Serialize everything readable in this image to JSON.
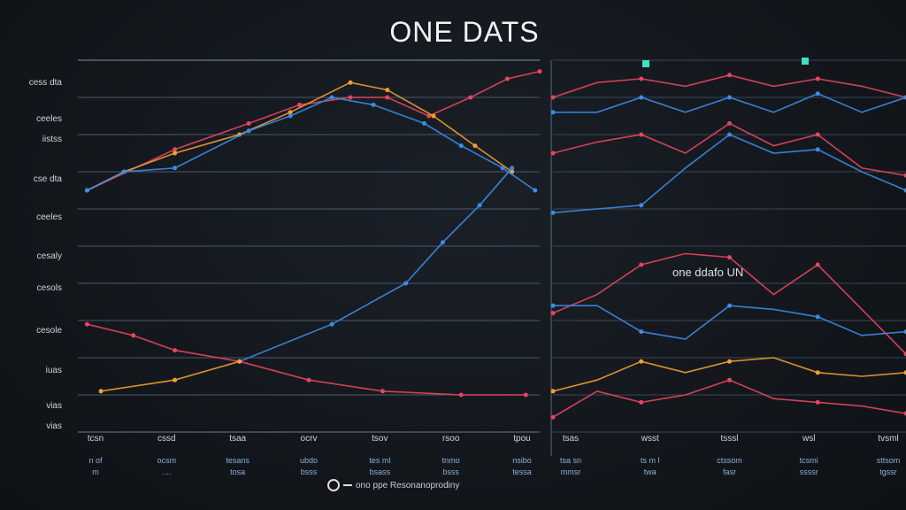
{
  "title": "ONE DATS",
  "inner_label": "one ddafo UN",
  "legend": "ono ppe Resonanoprodiny",
  "chart_data": [
    {
      "type": "line",
      "title": "ONE DATS",
      "xlim": [
        0,
        10
      ],
      "ylim": [
        0,
        100
      ],
      "grid": true,
      "ytick_labels": [
        "cess dta",
        "ceeles",
        "iistss",
        "cse dta",
        "ceeles",
        "cesaly",
        "cesols",
        "cesole",
        "iuas",
        "vias",
        "vias"
      ],
      "xtick_labels": [
        "tcsn",
        "cssd",
        "tsaa",
        "ocrv",
        "tsov",
        "rsoo",
        "tpou"
      ],
      "xsub_labels": [
        [
          "n of",
          "m"
        ],
        [
          "ocsm",
          "...."
        ],
        [
          "tesans",
          "tosa"
        ],
        [
          "ubdo",
          "bsss"
        ],
        [
          "tes ml",
          "bsass"
        ],
        [
          "tnmo",
          "bsss"
        ],
        [
          "nsibo",
          "tessa"
        ]
      ],
      "series": [
        {
          "name": "red-upper",
          "color": "#e8455e",
          "x": [
            0.2,
            2.1,
            3.7,
            4.8,
            5.9,
            6.7,
            7.6,
            8.5,
            9.3,
            10
          ],
          "y": [
            65,
            76,
            83,
            88,
            90,
            90,
            85,
            90,
            95,
            97
          ]
        },
        {
          "name": "orange-upper",
          "color": "#f0a030",
          "x": [
            0.2,
            1,
            2.1,
            3.5,
            4.6,
            5.9,
            6.7,
            7.7,
            8.6,
            9.4
          ],
          "y": [
            65,
            70,
            75,
            80,
            86,
            94,
            92,
            85,
            77,
            70
          ]
        },
        {
          "name": "blue-upper",
          "color": "#3a8ce8",
          "x": [
            0.2,
            1,
            2.1,
            3.7,
            4.6,
            5.5,
            6.4,
            7.5,
            8.3,
            9.2,
            9.9
          ],
          "y": [
            65,
            70,
            71,
            81,
            85,
            90,
            88,
            83,
            77,
            71,
            65
          ]
        },
        {
          "name": "blue-rising",
          "color": "#3a8ce8",
          "x": [
            3.5,
            5.5,
            7.1,
            7.9,
            8.7,
            9.4
          ],
          "y": [
            19,
            29,
            40,
            51,
            61,
            71
          ]
        },
        {
          "name": "red-falling",
          "color": "#e8455e",
          "x": [
            0.2,
            1.2,
            2.1,
            3.5,
            5,
            6.6,
            8.3,
            9.7
          ],
          "y": [
            29,
            26,
            22,
            19,
            14,
            11,
            10,
            10
          ]
        },
        {
          "name": "orange-low",
          "color": "#f0a030",
          "x": [
            0.5,
            2.1,
            3.5
          ],
          "y": [
            11,
            14,
            19
          ]
        }
      ]
    },
    {
      "type": "line",
      "xlim": [
        0,
        8
      ],
      "ylim": [
        0,
        100
      ],
      "grid": true,
      "xtick_labels": [
        "tsas",
        "wsst",
        "tsssl",
        "wsl",
        "tvsml"
      ],
      "xsub_labels": [
        [
          "tsa sn",
          "mmsr"
        ],
        [
          "ts m l",
          "twa"
        ],
        [
          "ctssom",
          "fasr"
        ],
        [
          "tcsmi",
          "ssssr"
        ],
        [
          "sttsom",
          "tgssr"
        ]
      ],
      "series": [
        {
          "name": "r1",
          "color": "#e8455e",
          "y": [
            90,
            94,
            95,
            93,
            96,
            93,
            95,
            93,
            90
          ]
        },
        {
          "name": "b1",
          "color": "#3a8ce8",
          "y": [
            86,
            86,
            90,
            86,
            90,
            86,
            91,
            86,
            90
          ]
        },
        {
          "name": "r2",
          "color": "#e8455e",
          "y": [
            75,
            78,
            80,
            75,
            83,
            77,
            80,
            71,
            69
          ]
        },
        {
          "name": "b2",
          "color": "#3a8ce8",
          "y": [
            59,
            60,
            61,
            71,
            80,
            75,
            76,
            70,
            65
          ]
        },
        {
          "name": "r3",
          "color": "#e8455e",
          "y": [
            32,
            37,
            45,
            48,
            47,
            37,
            45,
            33,
            21
          ]
        },
        {
          "name": "b3",
          "color": "#3a8ce8",
          "y": [
            34,
            34,
            27,
            25,
            34,
            33,
            31,
            26,
            27
          ]
        },
        {
          "name": "o1",
          "color": "#f0a030",
          "y": [
            11,
            14,
            19,
            16,
            19,
            20,
            16,
            15,
            16
          ]
        },
        {
          "name": "r4",
          "color": "#e8455e",
          "y": [
            4,
            11,
            8,
            10,
            14,
            9,
            8,
            7,
            5
          ]
        }
      ]
    }
  ]
}
